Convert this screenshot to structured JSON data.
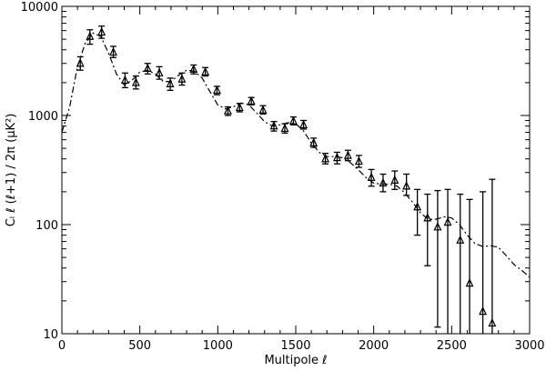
{
  "chart_data": {
    "type": "scatter",
    "xlabel": "Multipole ℓ",
    "ylabel": "Cₗ ℓ (ℓ+1) / 2π  (μK²)",
    "xlim": [
      0,
      3000
    ],
    "ylim": [
      10,
      10000
    ],
    "yscale": "log",
    "grid": false,
    "x_ticks": [
      0,
      500,
      1000,
      1500,
      2000,
      2500,
      3000
    ],
    "x_tick_labels": [
      "0",
      "500",
      "1000",
      "1500",
      "2000",
      "2500",
      "3000"
    ],
    "y_ticks": [
      10,
      100,
      1000,
      10000
    ],
    "y_tick_labels": [
      "10",
      "100",
      "1000",
      "10000"
    ],
    "model_curve": {
      "style": "dash-dot",
      "x": [
        0,
        50,
        100,
        150,
        200,
        250,
        300,
        350,
        400,
        450,
        500,
        550,
        600,
        650,
        700,
        750,
        800,
        850,
        900,
        950,
        1000,
        1050,
        1100,
        1150,
        1200,
        1250,
        1300,
        1350,
        1400,
        1450,
        1500,
        1550,
        1600,
        1650,
        1700,
        1750,
        1800,
        1850,
        1900,
        1950,
        2000,
        2050,
        2100,
        2150,
        2200,
        2250,
        2300,
        2350,
        2400,
        2450,
        2500,
        2550,
        2600,
        2650,
        2700,
        2750,
        2800,
        2850,
        2900,
        2950,
        3000
      ],
      "y": [
        700,
        1200,
        2800,
        4600,
        5700,
        5300,
        3700,
        2400,
        1900,
        2100,
        2500,
        2600,
        2400,
        2050,
        2050,
        2350,
        2600,
        2550,
        2200,
        1650,
        1250,
        1150,
        1200,
        1300,
        1250,
        1050,
        880,
        800,
        820,
        860,
        840,
        720,
        560,
        460,
        420,
        420,
        410,
        370,
        320,
        270,
        240,
        235,
        235,
        225,
        195,
        160,
        128,
        112,
        112,
        118,
        115,
        100,
        80,
        67,
        63,
        64,
        62,
        52,
        43,
        38,
        33
      ]
    },
    "series": [
      {
        "marker": "triangle",
        "x": [
          118,
          180,
          255,
          330,
          405,
          475,
          550,
          625,
          695,
          770,
          845,
          920,
          995,
          1065,
          1140,
          1215,
          1290,
          1360,
          1430,
          1485,
          1550,
          1615,
          1690,
          1765,
          1835,
          1905,
          1985,
          2060,
          2135,
          2210,
          2280,
          2345,
          2410,
          2475,
          2555,
          2615,
          2700,
          2760
        ],
        "y": [
          3000,
          5300,
          5800,
          3800,
          2100,
          2000,
          2700,
          2450,
          1950,
          2150,
          2650,
          2500,
          1700,
          1100,
          1180,
          1350,
          1120,
          800,
          760,
          890,
          820,
          560,
          400,
          410,
          430,
          380,
          270,
          240,
          255,
          225,
          145,
          115,
          95,
          105,
          72,
          29,
          16,
          12.5
        ],
        "err_low": [
          2600,
          4500,
          5100,
          3400,
          1800,
          1750,
          2400,
          2150,
          1700,
          1900,
          2400,
          2300,
          1550,
          1000,
          1080,
          1250,
          1030,
          720,
          690,
          820,
          750,
          510,
          360,
          360,
          385,
          335,
          225,
          200,
          210,
          185,
          80,
          42,
          11.5,
          10,
          10,
          10,
          10,
          10
        ],
        "err_high": [
          3450,
          6100,
          6600,
          4300,
          2450,
          2300,
          3000,
          2800,
          2200,
          2450,
          2900,
          2750,
          1850,
          1200,
          1290,
          1460,
          1230,
          880,
          840,
          970,
          900,
          620,
          450,
          460,
          480,
          430,
          320,
          290,
          310,
          290,
          210,
          190,
          205,
          210,
          190,
          170,
          200,
          260
        ]
      }
    ]
  }
}
